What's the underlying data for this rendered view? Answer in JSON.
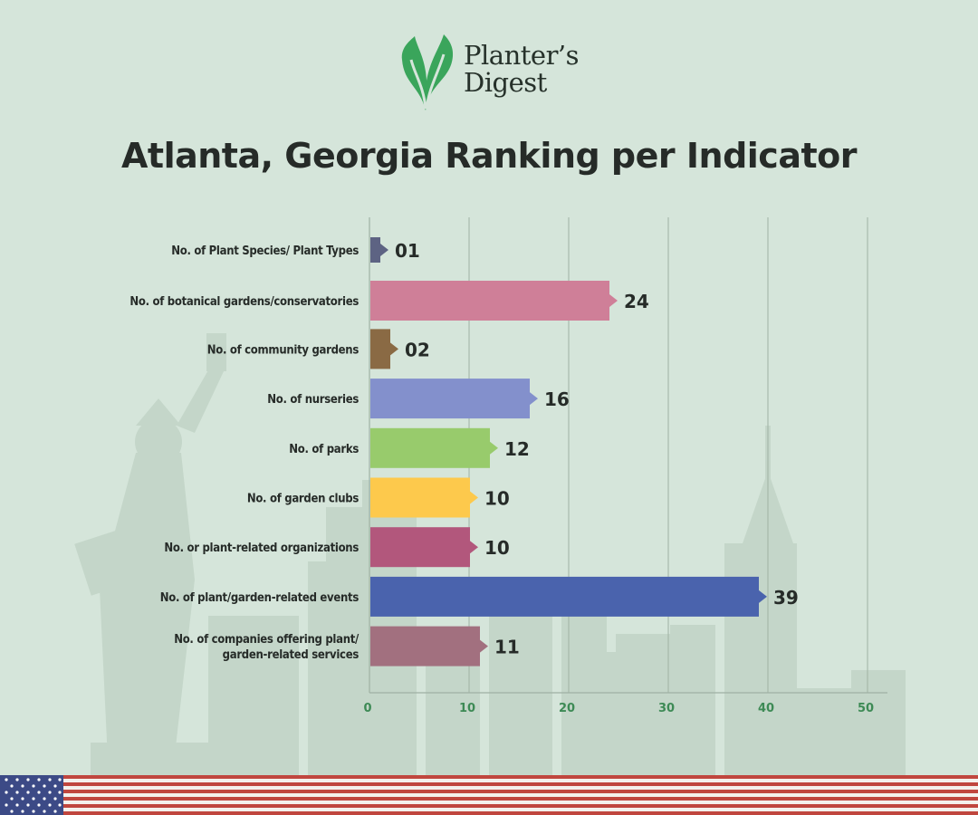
{
  "brand": {
    "name_line1": "Planter’s",
    "name_line2": "Digest"
  },
  "page": {
    "title": "Atlanta, Georgia Ranking per Indicator"
  },
  "chart_data": {
    "type": "bar",
    "orientation": "horizontal",
    "categories": [
      "No. of Plant Species/ Plant Types",
      "No. of botanical gardens/conservatories",
      "No. of community gardens",
      "No. of nurseries",
      "No. of parks",
      "No. of garden clubs",
      "No. or plant-related organizations",
      "No. of plant/garden-related events",
      "No. of companies offering plant/ garden-related services"
    ],
    "category_lines": [
      [
        "No. of Plant Species/ Plant Types"
      ],
      [
        "No. of botanical gardens/conservatories"
      ],
      [
        "No. of community gardens"
      ],
      [
        "No. of nurseries"
      ],
      [
        "No. of parks"
      ],
      [
        "No. of garden clubs"
      ],
      [
        "No. or plant-related organizations"
      ],
      [
        "No. of plant/garden-related events"
      ],
      [
        "No. of companies offering plant/",
        "garden-related services"
      ]
    ],
    "values": [
      1,
      24,
      2,
      16,
      12,
      10,
      10,
      39,
      11
    ],
    "value_labels": [
      "01",
      "24",
      "02",
      "16",
      "12",
      "10",
      "10",
      "39",
      "11"
    ],
    "colors": [
      "#5d6383",
      "#cf7f98",
      "#8a6a44",
      "#8390cc",
      "#98cb6c",
      "#fdc94c",
      "#b2577c",
      "#4a63ad",
      "#a2707f"
    ],
    "xlim": [
      0,
      52
    ],
    "xticks": [
      0,
      10,
      20,
      30,
      40,
      50
    ],
    "grid": true,
    "accent_colors": {
      "tick_label": "#3d8a55",
      "value_label": "#262b28"
    }
  }
}
